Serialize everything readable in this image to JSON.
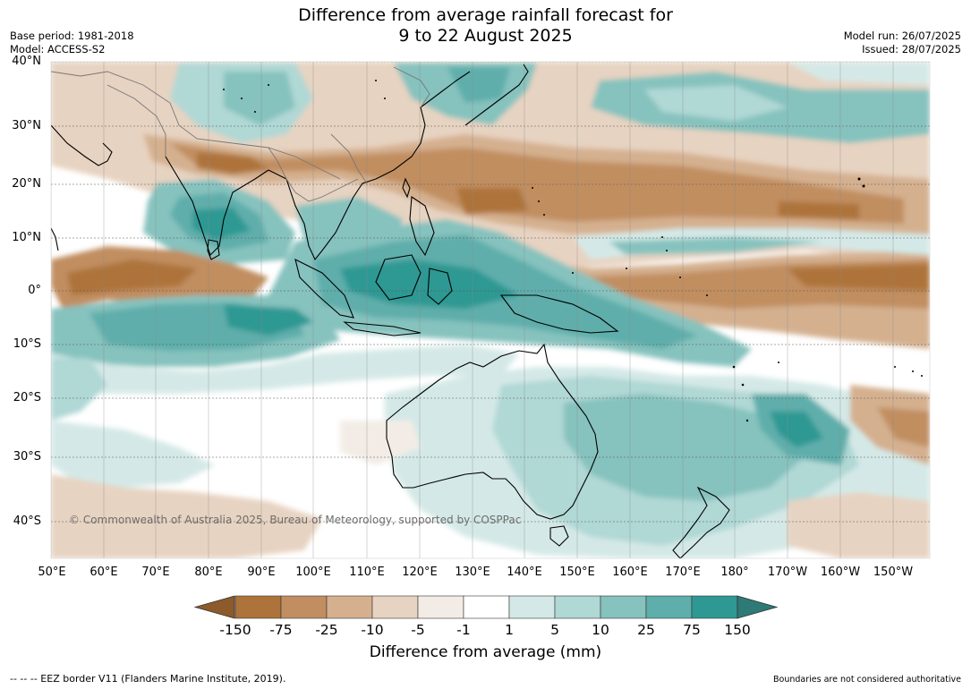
{
  "title_line1": "Difference from average rainfall forecast for",
  "title_line2": "9 to 22 August 2025",
  "base_period": "Base period: 1981-2018",
  "model": "Model: ACCESS-S2",
  "model_run": "Model run: 26/07/2025",
  "issued": "Issued: 28/07/2025",
  "copyright": "© Commonwealth of Australia 2025, Bureau of Meteorology, supported by COSPPac",
  "eez_note": "--  --  -- EEZ border V11 (Flanders Marine Institute, 2019).",
  "boundary_note": "Boundaries are not considered authoritative",
  "lat_labels": [
    "40°N",
    "30°N",
    "20°N",
    "10°N",
    "0°",
    "10°S",
    "20°S",
    "30°S",
    "40°S"
  ],
  "lon_labels": [
    "50°E",
    "60°E",
    "70°E",
    "80°E",
    "90°E",
    "100°E",
    "110°E",
    "120°E",
    "130°E",
    "140°E",
    "150°E",
    "160°E",
    "170°E",
    "180°",
    "170°W",
    "160°W",
    "150°W"
  ],
  "colorbar": {
    "label": "Difference from average (mm)",
    "ticks": [
      "-150",
      "-75",
      "-25",
      "-10",
      "-5",
      "-1",
      "1",
      "5",
      "10",
      "25",
      "75",
      "150"
    ],
    "colors": {
      "below_min": "#8c5a2b",
      "bins": [
        "#ad733b",
        "#c18e61",
        "#d4b08f",
        "#e7d3c1",
        "#f3ece6",
        "#ffffff",
        "#d4e9e7",
        "#b0d8d5",
        "#86c2be",
        "#5eaeab",
        "#2e9893"
      ],
      "above_max": "#2d7a76"
    }
  }
}
